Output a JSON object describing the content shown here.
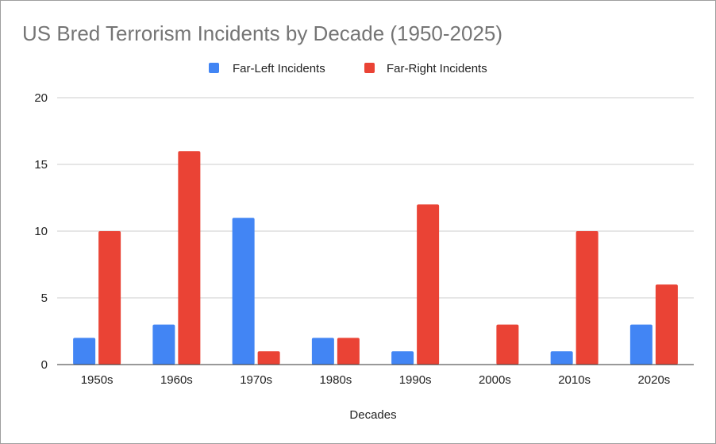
{
  "chart_data": {
    "type": "bar",
    "title": "US Bred Terrorism Incidents by Decade (1950-2025)",
    "xlabel": "Decades",
    "ylabel": "",
    "categories": [
      "1950s",
      "1960s",
      "1970s",
      "1980s",
      "1990s",
      "2000s",
      "2010s",
      "2020s"
    ],
    "series": [
      {
        "name": "Far-Left Incidents",
        "color": "#4285f4",
        "values": [
          2,
          3,
          11,
          2,
          1,
          0,
          1,
          3
        ]
      },
      {
        "name": "Far-Right Incidents",
        "color": "#ea4335",
        "values": [
          10,
          16,
          1,
          2,
          12,
          3,
          10,
          6
        ]
      }
    ],
    "ylim": [
      0,
      20
    ],
    "yticks": [
      "0",
      "5",
      "10",
      "15",
      "20"
    ],
    "ytick_values": [
      0,
      5,
      10,
      15,
      20
    ],
    "grid": true,
    "legend": "top-center"
  }
}
